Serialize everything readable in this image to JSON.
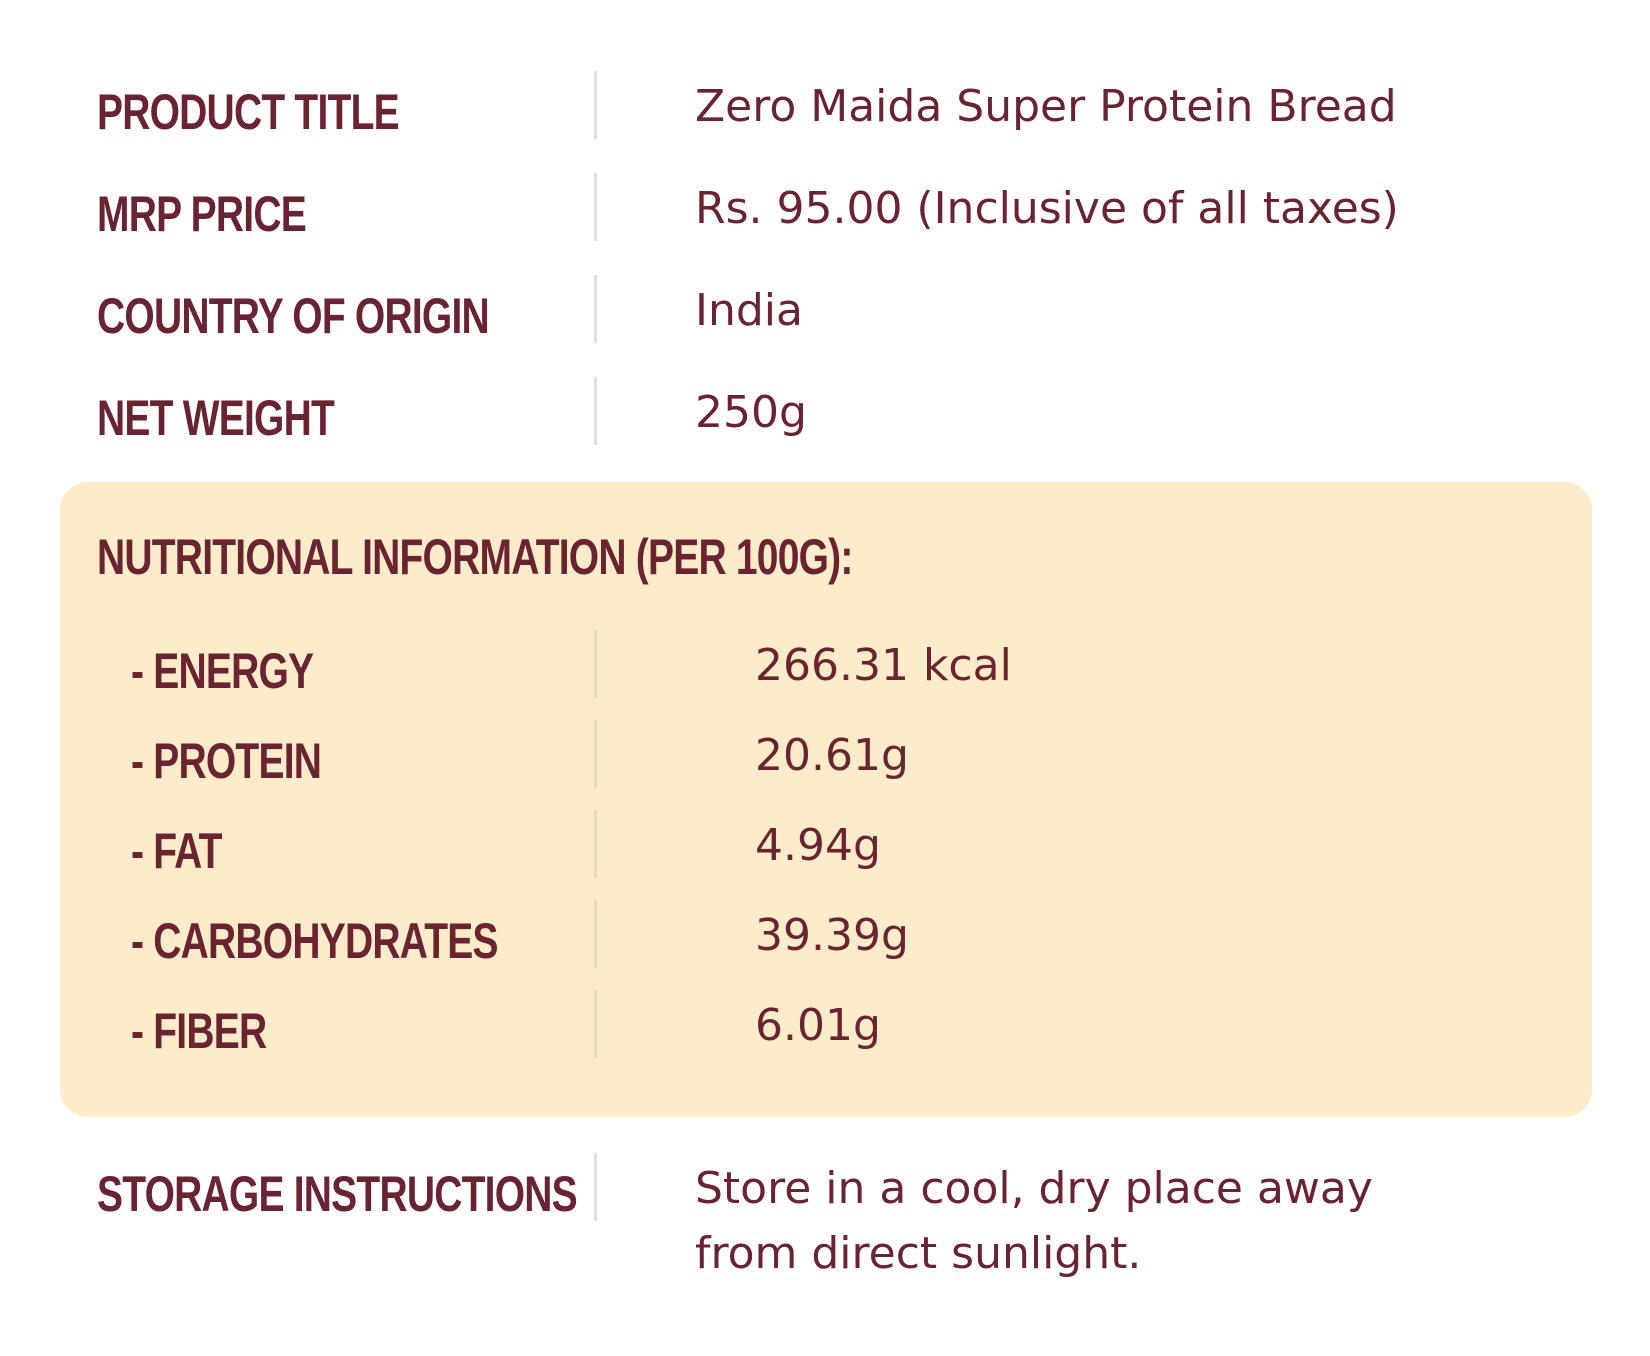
{
  "details": [
    {
      "label": "PRODUCT TITLE",
      "value": "Zero Maida Super Protein Bread"
    },
    {
      "label": "MRP PRICE",
      "value": "Rs. 95.00 (Inclusive of all taxes)"
    },
    {
      "label": "COUNTRY OF ORIGIN",
      "value": "India"
    },
    {
      "label": "NET WEIGHT",
      "value": "250g"
    }
  ],
  "nutrition": {
    "title": "NUTRITIONAL INFORMATION (PER 100G):",
    "rows": [
      {
        "label": "- ENERGY",
        "value": "266.31 kcal"
      },
      {
        "label": "- PROTEIN",
        "value": "20.61g"
      },
      {
        "label": "- FAT",
        "value": "4.94g"
      },
      {
        "label": "- CARBOHYDRATES",
        "value": "39.39g"
      },
      {
        "label": "- FIBER",
        "value": "6.01g"
      }
    ]
  },
  "storage": {
    "label": "STORAGE INSTRUCTIONS",
    "line1": "Store in a cool, dry place away",
    "line2": "from direct sunlight."
  },
  "colors": {
    "text": "#6a2330",
    "panel": "#fdecc9"
  }
}
